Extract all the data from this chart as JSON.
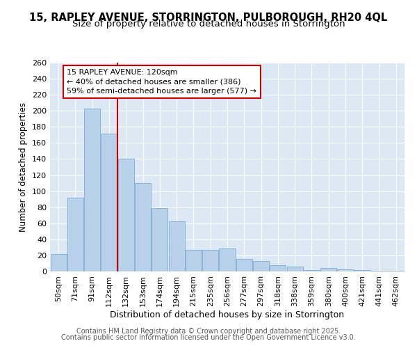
{
  "title1": "15, RAPLEY AVENUE, STORRINGTON, PULBOROUGH, RH20 4QL",
  "title2": "Size of property relative to detached houses in Storrington",
  "xlabel": "Distribution of detached houses by size in Storrington",
  "ylabel": "Number of detached properties",
  "categories": [
    "50sqm",
    "71sqm",
    "91sqm",
    "112sqm",
    "132sqm",
    "153sqm",
    "174sqm",
    "194sqm",
    "215sqm",
    "235sqm",
    "256sqm",
    "277sqm",
    "297sqm",
    "318sqm",
    "338sqm",
    "359sqm",
    "380sqm",
    "400sqm",
    "421sqm",
    "441sqm",
    "462sqm"
  ],
  "values": [
    22,
    92,
    203,
    172,
    140,
    110,
    79,
    62,
    27,
    27,
    29,
    16,
    13,
    8,
    6,
    2,
    4,
    3,
    2,
    1,
    1
  ],
  "bar_color": "#b8d0ea",
  "bar_edge_color": "#7aadd4",
  "vline_x_index": 3.5,
  "vline_color": "#cc0000",
  "annotation_text": "15 RAPLEY AVENUE: 120sqm\n← 40% of detached houses are smaller (386)\n59% of semi-detached houses are larger (577) →",
  "annotation_box_facecolor": "#ffffff",
  "annotation_box_edgecolor": "#cc0000",
  "ylim": [
    0,
    260
  ],
  "yticks": [
    0,
    20,
    40,
    60,
    80,
    100,
    120,
    140,
    160,
    180,
    200,
    220,
    240,
    260
  ],
  "bg_color": "#dde8f5",
  "footer1": "Contains HM Land Registry data © Crown copyright and database right 2025.",
  "footer2": "Contains public sector information licensed under the Open Government Licence v3.0.",
  "title1_fontsize": 10.5,
  "title2_fontsize": 9.5,
  "xlabel_fontsize": 9,
  "ylabel_fontsize": 8.5,
  "tick_fontsize": 8,
  "annotation_fontsize": 8,
  "footer_fontsize": 7
}
